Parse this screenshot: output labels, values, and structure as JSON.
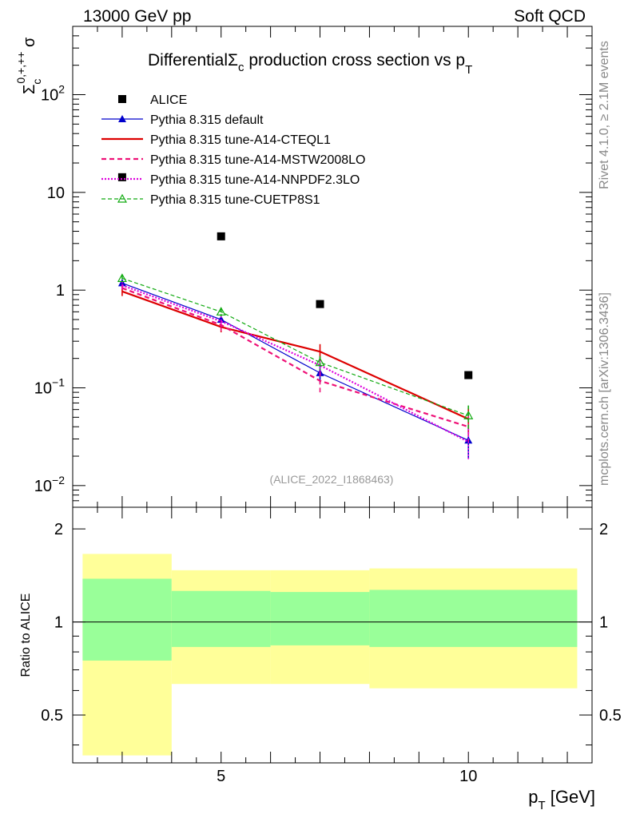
{
  "header": {
    "energy_label": "13000 GeV pp",
    "category_label": "Soft QCD"
  },
  "side_labels": {
    "rivet": "Rivet 4.1.0, ≥ 2.1M events",
    "mcplots": "mcplots.cern.ch [arXiv:1306.3436]"
  },
  "chart_data": [
    {
      "type": "line",
      "title": "Differential Σc production cross section vs pT",
      "title_main": "Differential",
      "title_symbol": "Σ",
      "title_symbol_sub": "c",
      "title_rest": " production cross section vs p",
      "title_rest_sub": "T",
      "ylabel": "Σc0,+,++ σ",
      "ylabel_sym": "Σ",
      "ylabel_sub": "c",
      "ylabel_sup": "0,+,++",
      "ylabel_tail": " σ",
      "yscale": "log",
      "ylim": [
        0.006,
        500
      ],
      "xlim": [
        2.0,
        12.5
      ],
      "ytick_labels": [
        {
          "value": 0.01,
          "base": "10",
          "exp": "−2"
        },
        {
          "value": 0.1,
          "base": "10",
          "exp": "−1"
        },
        {
          "value": 1,
          "base": "1",
          "exp": ""
        },
        {
          "value": 10,
          "base": "10",
          "exp": ""
        },
        {
          "value": 100,
          "base": "10",
          "exp": "2"
        }
      ],
      "watermark": "(ALICE_2022_I1868463)",
      "legend_position": "top-left",
      "x": [
        3,
        5,
        7,
        10
      ],
      "bins": [
        [
          2,
          4
        ],
        [
          4,
          6
        ],
        [
          6,
          8
        ],
        [
          8,
          12
        ]
      ],
      "data_series": {
        "name": "ALICE",
        "values": [
          14.3,
          3.55,
          0.72,
          0.135
        ],
        "color": "#000000"
      },
      "series": [
        {
          "name": "Pythia 8.315 default",
          "values": [
            1.18,
            0.5,
            0.142,
            0.029
          ],
          "err_low": [
            0.1,
            0.06,
            0.03,
            0.01
          ],
          "err_high": [
            0.1,
            0.06,
            0.03,
            0.01
          ],
          "color": "#0000cc",
          "dash": "",
          "width": 1.2,
          "marker": "triangle-filled"
        },
        {
          "name": "Pythia 8.315 tune-A14-CTEQL1",
          "values": [
            0.97,
            0.42,
            0.235,
            0.048
          ],
          "err_low": [
            0.1,
            0.05,
            0.045,
            0.014
          ],
          "err_high": [
            0.1,
            0.05,
            0.045,
            0.014
          ],
          "color": "#dd0000",
          "dash": "",
          "width": 2.2,
          "marker": "none"
        },
        {
          "name": "Pythia 8.315 tune-A14-MSTW2008LO",
          "values": [
            1.05,
            0.44,
            0.118,
            0.04
          ],
          "err_low": [
            0.1,
            0.06,
            0.028,
            0.012
          ],
          "err_high": [
            0.1,
            0.06,
            0.028,
            0.012
          ],
          "color": "#ee1177",
          "dash": "6,4",
          "width": 2.2,
          "marker": "none"
        },
        {
          "name": "Pythia 8.315 tune-A14-NNPDF2.3LO",
          "values": [
            1.12,
            0.48,
            0.17,
            0.028
          ],
          "err_low": [
            0.1,
            0.06,
            0.035,
            0.01
          ],
          "err_high": [
            0.1,
            0.06,
            0.035,
            0.01
          ],
          "color": "#dd00dd",
          "dash": "2,2",
          "width": 2.2,
          "marker": "none"
        },
        {
          "name": "Pythia 8.315 tune-CUETP8S1",
          "values": [
            1.32,
            0.6,
            0.182,
            0.052
          ],
          "err_low": [
            0.1,
            0.06,
            0.03,
            0.014
          ],
          "err_high": [
            0.1,
            0.06,
            0.03,
            0.014
          ],
          "color": "#11aa11",
          "dash": "5,3",
          "width": 1.2,
          "marker": "triangle-open"
        }
      ]
    },
    {
      "type": "area",
      "ylabel": "Ratio to ALICE",
      "xlabel": "pT [GeV]",
      "xlabel_main": "p",
      "xlabel_sub": "T",
      "xlabel_tail": " [GeV]",
      "yscale": "log",
      "ylim": [
        0.35,
        2.35
      ],
      "xlim": [
        2.0,
        12.5
      ],
      "xtick_labels": [
        {
          "value": 5,
          "label": "5"
        },
        {
          "value": 10,
          "label": "10"
        }
      ],
      "ytick_labels": [
        {
          "value": 0.5,
          "label": "0.5"
        },
        {
          "value": 1,
          "label": "1"
        },
        {
          "value": 2,
          "label": "2"
        }
      ],
      "reference_line": 1.0,
      "bands": [
        {
          "bin": [
            2.2,
            4.0
          ],
          "yellow": [
            0.37,
            1.66
          ],
          "green": [
            0.75,
            1.38
          ]
        },
        {
          "bin": [
            4.0,
            6.0
          ],
          "yellow": [
            0.63,
            1.47
          ],
          "green": [
            0.83,
            1.26
          ]
        },
        {
          "bin": [
            6.0,
            8.0
          ],
          "yellow": [
            0.63,
            1.47
          ],
          "green": [
            0.84,
            1.25
          ]
        },
        {
          "bin": [
            8.0,
            12.2
          ],
          "yellow": [
            0.61,
            1.49
          ],
          "green": [
            0.83,
            1.27
          ]
        }
      ],
      "colors": {
        "yellow": "#ffff99",
        "green": "#99ff99"
      }
    }
  ]
}
